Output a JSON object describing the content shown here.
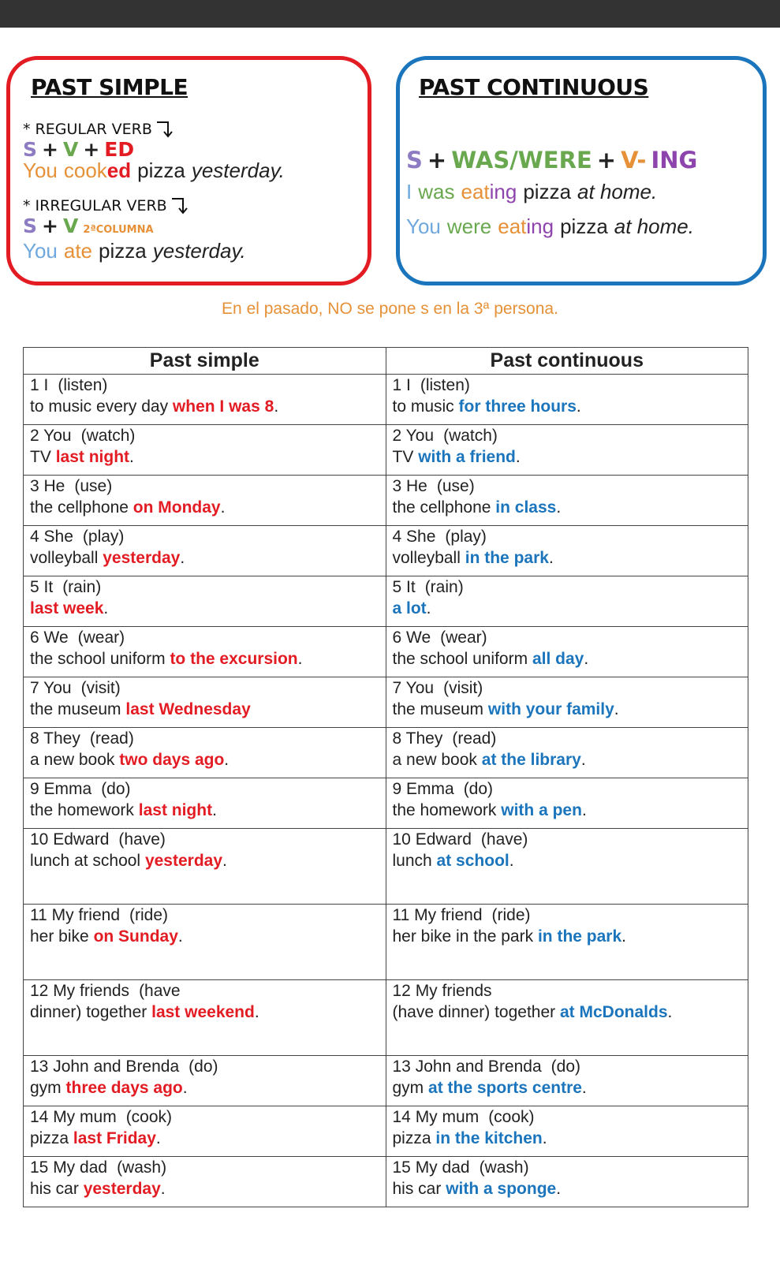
{
  "past_simple": {
    "title": "PAST SIMPLE",
    "regular": {
      "label": "* REGULAR VERB",
      "formula": [
        {
          "text": "S",
          "color": "#8e7cc3"
        },
        {
          "text": "+",
          "color": "#222222"
        },
        {
          "text": "V",
          "color": "#6aa84f"
        },
        {
          "text": "+",
          "color": "#222222"
        },
        {
          "text": "ED",
          "color": "#e31b23"
        }
      ],
      "example": [
        {
          "text": "You",
          "color": "#e69138"
        },
        {
          "text": "cook",
          "color": "#e69138"
        },
        {
          "text": "ed",
          "color": "#e31b23",
          "bold": true
        },
        {
          "text": "pizza",
          "color": "#222222"
        },
        {
          "text": "yesterday.",
          "color": "#222222",
          "italic": true
        }
      ]
    },
    "irregular": {
      "label": "* IRREGULAR VERB",
      "formula": [
        {
          "text": "S",
          "color": "#8e7cc3"
        },
        {
          "text": "+",
          "color": "#222222"
        },
        {
          "text": "V",
          "color": "#6aa84f"
        },
        {
          "text": "2ªCOLUMNA",
          "color": "#e69138",
          "small": true
        }
      ],
      "example": [
        {
          "text": "You",
          "color": "#6fa8dc"
        },
        {
          "text": "ate",
          "color": "#e69138"
        },
        {
          "text": "pizza",
          "color": "#222222"
        },
        {
          "text": "yesterday.",
          "color": "#222222",
          "italic": true
        }
      ]
    }
  },
  "past_continuous": {
    "title": "PAST CONTINUOUS",
    "formula": [
      {
        "text": "S",
        "color": "#8e7cc3"
      },
      {
        "text": "+",
        "color": "#222222"
      },
      {
        "text": "WAS/WERE",
        "color": "#6aa84f"
      },
      {
        "text": "+",
        "color": "#222222"
      },
      {
        "text": "V-",
        "color": "#e69138"
      },
      {
        "text": "ING",
        "color": "#8e44ad"
      }
    ],
    "examples": [
      [
        {
          "text": "I",
          "color": "#6fa8dc"
        },
        {
          "text": "was",
          "color": "#6aa84f"
        },
        {
          "text": "eat",
          "color": "#e69138"
        },
        {
          "text": "ing",
          "color": "#8e44ad"
        },
        {
          "text": "pizza",
          "color": "#222222"
        },
        {
          "text": "at home.",
          "color": "#222222",
          "italic": true
        }
      ],
      [
        {
          "text": "You",
          "color": "#6fa8dc"
        },
        {
          "text": "were",
          "color": "#6aa84f"
        },
        {
          "text": "eat",
          "color": "#e69138"
        },
        {
          "text": "ing",
          "color": "#8e44ad"
        },
        {
          "text": "pizza",
          "color": "#222222"
        },
        {
          "text": "at home.",
          "color": "#222222",
          "italic": true
        }
      ]
    ]
  },
  "note": "En el pasado, NO se pone s en la 3ª persona.",
  "table": {
    "headers": [
      "Past simple",
      "Past continuous"
    ],
    "rows": [
      [
        {
          "subject": "1 I",
          "verb": "(listen)",
          "rest": "to music every day",
          "phrase": "when I was 8",
          "end": "."
        },
        {
          "subject": "1 I",
          "verb": "(listen)",
          "rest": "to music",
          "phrase": "for three hours",
          "end": "."
        }
      ],
      [
        {
          "subject": "2 You",
          "verb": "(watch)",
          "rest": "TV",
          "phrase": "last night",
          "end": "."
        },
        {
          "subject": "2 You",
          "verb": "(watch)",
          "rest": "TV",
          "phrase": "with a friend",
          "end": "."
        }
      ],
      [
        {
          "subject": "3 He",
          "verb": "(use)",
          "rest": "the cellphone",
          "phrase": "on Monday",
          "end": "."
        },
        {
          "subject": "3 He",
          "verb": "(use)",
          "rest": "the cellphone",
          "phrase": "in class",
          "end": "."
        }
      ],
      [
        {
          "subject": "4 She",
          "verb": "(play)",
          "rest": "volleyball",
          "phrase": "yesterday",
          "end": "."
        },
        {
          "subject": "4 She",
          "verb": "(play)",
          "rest": "volleyball",
          "phrase": "in the park",
          "end": "."
        }
      ],
      [
        {
          "subject": "5 It",
          "verb": "(rain)",
          "phrase": "last week",
          "end": "."
        },
        {
          "subject": "5 It",
          "verb": "(rain)",
          "phrase": "a lot",
          "end": "."
        }
      ],
      [
        {
          "subject": "6 We",
          "verb": "(wear)",
          "rest": "the school uniform",
          "phrase": "to the excursion",
          "end": "."
        },
        {
          "subject": "6 We",
          "verb": "(wear)",
          "rest": "the school uniform",
          "phrase": "all day",
          "end": "."
        }
      ],
      [
        {
          "subject": "7 You",
          "verb": "(visit)",
          "rest": "the museum",
          "phrase": "last Wednesday"
        },
        {
          "subject": "7 You",
          "verb": "(visit)",
          "rest": "the museum",
          "phrase": "with your family",
          "end": "."
        }
      ],
      [
        {
          "subject": "8 They",
          "verb": "(read)",
          "rest": "a new book",
          "phrase": "two days ago",
          "end": "."
        },
        {
          "subject": "8 They",
          "verb": "(read)",
          "rest": "a new book",
          "phrase": "at the library",
          "end": "."
        }
      ],
      [
        {
          "subject": "9 Emma",
          "verb": "(do)",
          "rest": "the homework",
          "phrase": "last night",
          "end": "."
        },
        {
          "subject": "9 Emma",
          "verb": "(do)",
          "rest": "the homework",
          "phrase": "with a pen",
          "end": "."
        }
      ],
      [
        {
          "subject": "10 Edward",
          "verb": "(have)",
          "rest": "lunch at school",
          "phrase": "yesterday",
          "end": "."
        },
        {
          "subject": "10 Edward",
          "verb": "(have)",
          "rest": "lunch",
          "phrase": "at school",
          "end": "."
        }
      ],
      [
        {
          "subject": "11 My friend",
          "verb": "(ride)",
          "rest": "her bike",
          "phrase": "on Sunday",
          "end": "."
        },
        {
          "subject": "11 My friend",
          "verb": "(ride)",
          "rest": "her bike in the park",
          "phrase": "in the park",
          "end": "."
        }
      ],
      [
        {
          "subject": "12 My friends",
          "verb": "(have",
          "rest": "dinner) together",
          "phrase": "last weekend",
          "end": "."
        },
        {
          "subject": "12 My friends",
          "rest": "(have dinner) together",
          "phrase": "at McDonalds",
          "end": "."
        }
      ],
      [
        {
          "subject": "13 John and Brenda",
          "verb": "(do)",
          "rest": "gym",
          "phrase": "three days ago",
          "end": "."
        },
        {
          "subject": "13 John and Brenda",
          "verb": "(do)",
          "rest": "gym",
          "phrase": "at the sports centre",
          "end": "."
        }
      ],
      [
        {
          "subject": "14 My mum",
          "verb": "(cook)",
          "rest": "pizza",
          "phrase": "last Friday",
          "end": "."
        },
        {
          "subject": "14 My mum",
          "verb": "(cook)",
          "rest": "pizza",
          "phrase": "in the kitchen",
          "end": "."
        }
      ],
      [
        {
          "subject": "15 My dad",
          "verb": "(wash)",
          "rest": "his car",
          "phrase": "yesterday",
          "end": "."
        },
        {
          "subject": "15 My dad",
          "verb": "(wash)",
          "rest": "his car",
          "phrase": "with a sponge",
          "end": "."
        }
      ]
    ]
  }
}
